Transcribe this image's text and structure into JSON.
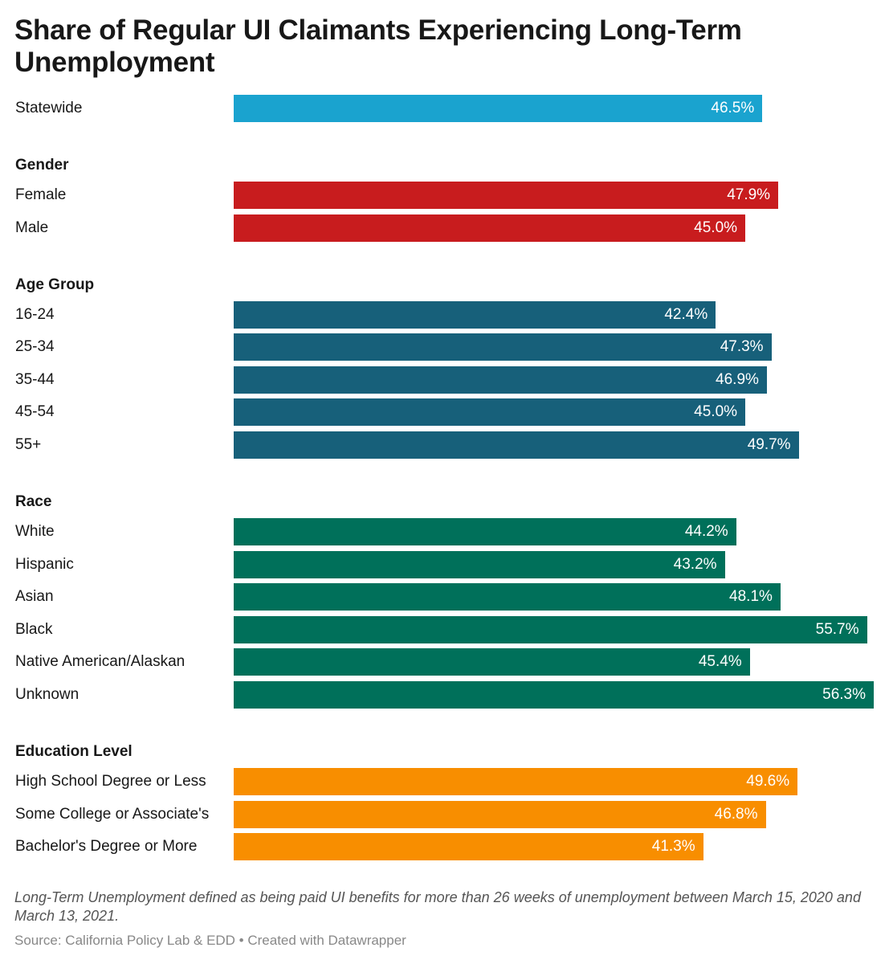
{
  "chart_data": {
    "type": "bar",
    "title": "Share of Regular UI Claimants Experiencing Long-Term Unemployment",
    "xlabel": "",
    "ylabel": "",
    "xlim": [
      0,
      56.3
    ],
    "groups": [
      {
        "name": "",
        "color": "#1aa3cf",
        "items": [
          {
            "label": "Statewide",
            "value": 46.5,
            "text": "46.5%"
          }
        ]
      },
      {
        "name": "Gender",
        "color": "#c81c1e",
        "items": [
          {
            "label": "Female",
            "value": 47.9,
            "text": "47.9%"
          },
          {
            "label": "Male",
            "value": 45.0,
            "text": "45.0%"
          }
        ]
      },
      {
        "name": "Age Group",
        "color": "#17607a",
        "items": [
          {
            "label": "16-24",
            "value": 42.4,
            "text": "42.4%"
          },
          {
            "label": "25-34",
            "value": 47.3,
            "text": "47.3%"
          },
          {
            "label": "35-44",
            "value": 46.9,
            "text": "46.9%"
          },
          {
            "label": "45-54",
            "value": 45.0,
            "text": "45.0%"
          },
          {
            "label": "55+",
            "value": 49.7,
            "text": "49.7%"
          }
        ]
      },
      {
        "name": "Race",
        "color": "#00705a",
        "items": [
          {
            "label": "White",
            "value": 44.2,
            "text": "44.2%"
          },
          {
            "label": "Hispanic",
            "value": 43.2,
            "text": "43.2%"
          },
          {
            "label": "Asian",
            "value": 48.1,
            "text": "48.1%"
          },
          {
            "label": "Black",
            "value": 55.7,
            "text": "55.7%"
          },
          {
            "label": "Native American/Alaskan",
            "value": 45.4,
            "text": "45.4%"
          },
          {
            "label": "Unknown",
            "value": 56.3,
            "text": "56.3%"
          }
        ]
      },
      {
        "name": "Education Level",
        "color": "#f88e00",
        "items": [
          {
            "label": "High School Degree or Less",
            "value": 49.6,
            "text": "49.6%"
          },
          {
            "label": "Some College or Associate's",
            "value": 46.8,
            "text": "46.8%"
          },
          {
            "label": "Bachelor's Degree or More",
            "value": 41.3,
            "text": "41.3%"
          }
        ]
      }
    ]
  },
  "notes": "Long-Term Unemployment defined as being paid UI benefits for more than 26 weeks of unemployment between March 15, 2020 and March 13, 2021.",
  "source": "Source: California Policy Lab & EDD • Created with Datawrapper"
}
